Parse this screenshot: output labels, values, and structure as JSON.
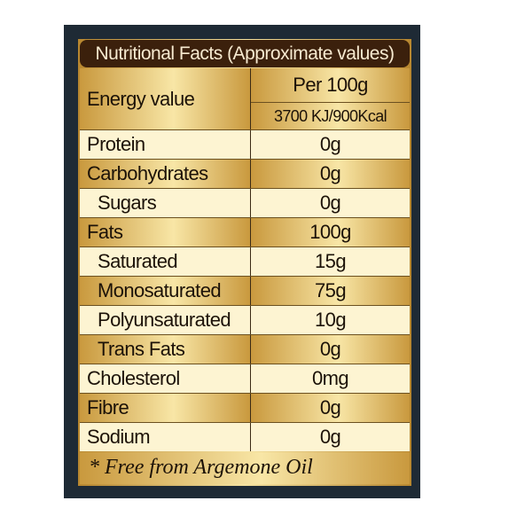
{
  "header": {
    "title": "Nutritional Facts (Approximate values)"
  },
  "energy": {
    "label": "Energy value",
    "per": "Per 100g",
    "value": "3700 KJ/900Kcal"
  },
  "table": {
    "rows": [
      [
        "Protein",
        "0g"
      ],
      [
        "Carbohydrates",
        "0g"
      ],
      [
        "Sugars",
        "0g"
      ],
      [
        "Fats",
        "100g"
      ],
      [
        "Saturated",
        "15g"
      ],
      [
        "Monosaturated",
        "75g"
      ],
      [
        "Polyunsaturated",
        "10g"
      ],
      [
        "Trans Fats",
        "0g"
      ],
      [
        "Cholesterol",
        "0mg"
      ],
      [
        "Fibre",
        "0g"
      ],
      [
        "Sodium",
        "0g"
      ]
    ]
  },
  "footer": {
    "note": "* Free from Argemone Oil"
  }
}
